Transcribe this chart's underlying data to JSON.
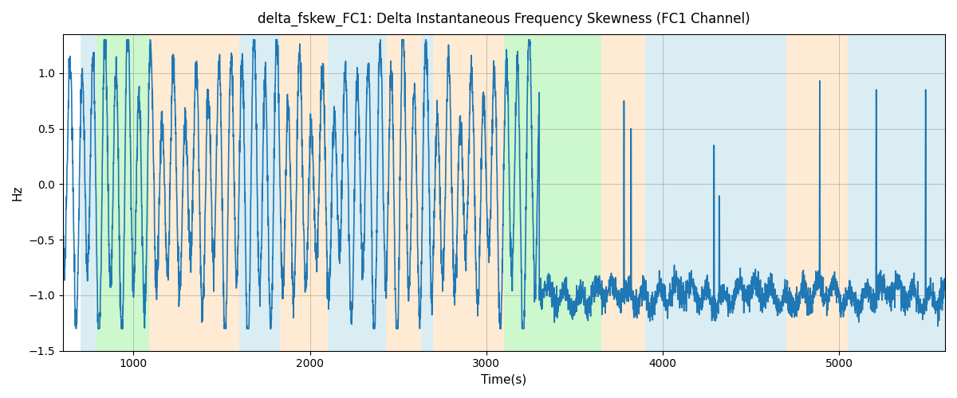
{
  "title": "delta_fskew_FC1: Delta Instantaneous Frequency Skewness (FC1 Channel)",
  "xlabel": "Time(s)",
  "ylabel": "Hz",
  "ylim": [
    -1.5,
    1.35
  ],
  "xlim": [
    600,
    5600
  ],
  "line_color": "#1f77b4",
  "line_width": 1.2,
  "bg_color": "white",
  "grid": true,
  "bands": [
    {
      "xmin": 700,
      "xmax": 790,
      "color": "#add8e6",
      "alpha": 0.45
    },
    {
      "xmin": 790,
      "xmax": 1090,
      "color": "#90ee90",
      "alpha": 0.45
    },
    {
      "xmin": 1090,
      "xmax": 1600,
      "color": "#ffd8a8",
      "alpha": 0.5
    },
    {
      "xmin": 1600,
      "xmax": 1830,
      "color": "#add8e6",
      "alpha": 0.45
    },
    {
      "xmin": 1830,
      "xmax": 2100,
      "color": "#ffd8a8",
      "alpha": 0.5
    },
    {
      "xmin": 2100,
      "xmax": 2430,
      "color": "#add8e6",
      "alpha": 0.45
    },
    {
      "xmin": 2430,
      "xmax": 2630,
      "color": "#ffd8a8",
      "alpha": 0.5
    },
    {
      "xmin": 2630,
      "xmax": 2700,
      "color": "#add8e6",
      "alpha": 0.45
    },
    {
      "xmin": 2700,
      "xmax": 3100,
      "color": "#ffd8a8",
      "alpha": 0.5
    },
    {
      "xmin": 3100,
      "xmax": 3650,
      "color": "#90ee90",
      "alpha": 0.45
    },
    {
      "xmin": 3650,
      "xmax": 3900,
      "color": "#ffd8a8",
      "alpha": 0.5
    },
    {
      "xmin": 3900,
      "xmax": 4700,
      "color": "#add8e6",
      "alpha": 0.45
    },
    {
      "xmin": 4700,
      "xmax": 5050,
      "color": "#ffd8a8",
      "alpha": 0.5
    },
    {
      "xmin": 5050,
      "xmax": 5600,
      "color": "#add8e6",
      "alpha": 0.45
    }
  ],
  "seed": 42,
  "t_start": 600,
  "t_end": 5600,
  "transition_time": 3300,
  "n_points_phase1": 2700,
  "n_points_phase2": 2300
}
